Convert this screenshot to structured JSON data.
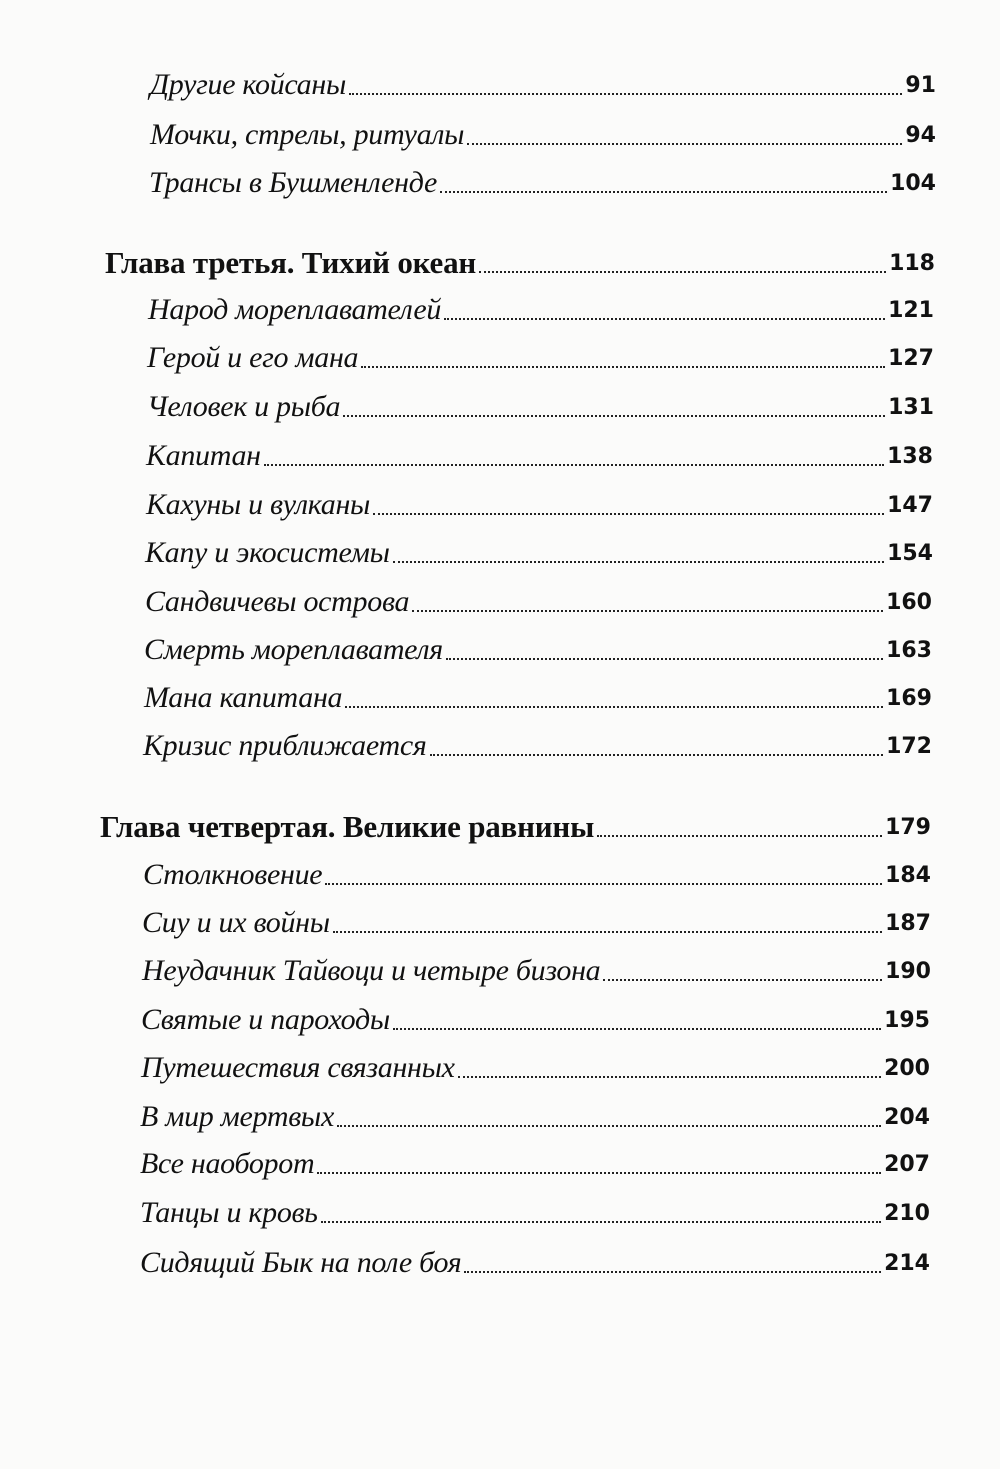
{
  "toc": [
    {
      "title": "Другие койсаны",
      "page": "91"
    },
    {
      "title": "Мочки, стрелы, ритуалы",
      "page": "94"
    },
    {
      "title": "Трансы в Бушменленде",
      "page": "104"
    },
    {
      "title": "Глава третья. Тихий океан",
      "page": "118",
      "chapter": true
    },
    {
      "title": "Народ мореплавателей",
      "page": "121"
    },
    {
      "title": "Герой и его мана",
      "page": "127"
    },
    {
      "title": "Человек и рыба",
      "page": "131"
    },
    {
      "title": "Капитан",
      "page": "138"
    },
    {
      "title": "Кахуны и вулканы",
      "page": "147"
    },
    {
      "title": "Капу и экосистемы",
      "page": "154"
    },
    {
      "title": "Сандвичевы острова",
      "page": "160"
    },
    {
      "title": "Смерть мореплавателя",
      "page": "163"
    },
    {
      "title": "Мана капитана",
      "page": "169"
    },
    {
      "title": "Кризис приближается",
      "page": "172"
    },
    {
      "title": "Глава четвертая. Великие равнины",
      "page": "179",
      "chapter": true
    },
    {
      "title": "Столкновение",
      "page": "184"
    },
    {
      "title": "Сиу и их войны",
      "page": "187"
    },
    {
      "title": "Неудачник Тайвоци и четыре бизона",
      "page": "190"
    },
    {
      "title": "Святые и пароходы",
      "page": "195"
    },
    {
      "title": "Путешествия связанных",
      "page": "200"
    },
    {
      "title": "В мир мертвых",
      "page": "204"
    },
    {
      "title": "Все наоборот",
      "page": "207"
    },
    {
      "title": "Танцы и кровь",
      "page": "210"
    },
    {
      "title": "Сидящий Бык на поле боя",
      "page": "214"
    }
  ]
}
